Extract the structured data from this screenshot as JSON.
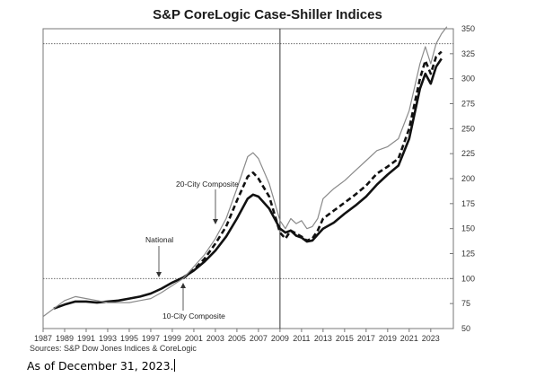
{
  "chart_data": {
    "type": "line",
    "title": "S&P CoreLogic Case-Shiller Indices",
    "xlabel": "",
    "ylabel": "",
    "xlim": [
      1987,
      2025.1
    ],
    "ylim": [
      50,
      350
    ],
    "x_ticks": [
      "1987",
      "1989",
      "1991",
      "1993",
      "1995",
      "1997",
      "1999",
      "2001",
      "2003",
      "2005",
      "2007",
      "2009",
      "2011",
      "2013",
      "2015",
      "2017",
      "2019",
      "2021",
      "2023"
    ],
    "y_ticks": [
      "50",
      "75",
      "100",
      "125",
      "150",
      "175",
      "200",
      "225",
      "250",
      "275",
      "300",
      "325",
      "350"
    ],
    "y_axis_side": "right",
    "reference_lines": [
      {
        "type": "horizontal",
        "value": 100,
        "style": "dotted"
      },
      {
        "type": "horizontal",
        "value": 335,
        "style": "dotted"
      },
      {
        "type": "vertical",
        "value": 2009,
        "style": "solid"
      }
    ],
    "series": [
      {
        "name": "National",
        "style": "thick-solid",
        "x": [
          1988,
          1989,
          1990,
          1991,
          1992,
          1993,
          1994,
          1995,
          1996,
          1997,
          1998,
          1999,
          2000,
          2001,
          2002,
          2003,
          2004,
          2005,
          2006,
          2006.5,
          2007,
          2008,
          2009,
          2009.5,
          2010,
          2010.5,
          2011,
          2011.5,
          2012,
          2012.5,
          2013,
          2014,
          2015,
          2016,
          2017,
          2018,
          2019,
          2020,
          2021,
          2022,
          2022.5,
          2023,
          2023.5,
          2024
        ],
        "y": [
          70,
          74,
          77,
          77,
          76,
          77,
          78,
          80,
          82,
          85,
          90,
          96,
          101,
          108,
          117,
          128,
          142,
          160,
          180,
          184,
          182,
          170,
          150,
          146,
          148,
          143,
          141,
          137,
          138,
          144,
          150,
          156,
          165,
          173,
          182,
          194,
          204,
          213,
          240,
          290,
          305,
          295,
          312,
          320
        ]
      },
      {
        "name": "20-City Composite",
        "style": "thick-dashed",
        "x": [
          2000,
          2001,
          2002,
          2003,
          2004,
          2005,
          2006,
          2006.5,
          2007,
          2008,
          2009,
          2009.5,
          2010,
          2010.5,
          2011,
          2011.5,
          2012,
          2012.5,
          2013,
          2014,
          2015,
          2016,
          2017,
          2018,
          2019,
          2020,
          2021,
          2022,
          2022.5,
          2023,
          2023.5,
          2024
        ],
        "y": [
          100,
          109,
          120,
          135,
          152,
          178,
          202,
          206,
          200,
          182,
          146,
          140,
          148,
          145,
          142,
          138,
          140,
          148,
          160,
          168,
          176,
          184,
          193,
          205,
          212,
          220,
          250,
          300,
          318,
          305,
          322,
          327
        ]
      },
      {
        "name": "10-City Composite",
        "style": "thin-solid",
        "x": [
          1987,
          1988,
          1989,
          1990,
          1991,
          1992,
          1993,
          1994,
          1995,
          1996,
          1997,
          1998,
          1999,
          2000,
          2001,
          2002,
          2003,
          2004,
          2005,
          2006,
          2006.5,
          2007,
          2008,
          2009,
          2009.5,
          2010,
          2010.5,
          2011,
          2011.5,
          2012,
          2012.5,
          2013,
          2014,
          2015,
          2016,
          2017,
          2018,
          2019,
          2020,
          2021,
          2022,
          2022.5,
          2023,
          2023.5,
          2024,
          2024.5
        ],
        "y": [
          62,
          70,
          78,
          82,
          80,
          78,
          76,
          76,
          76,
          78,
          80,
          86,
          93,
          100,
          112,
          124,
          140,
          160,
          190,
          222,
          226,
          220,
          195,
          158,
          150,
          160,
          155,
          158,
          150,
          152,
          160,
          180,
          190,
          198,
          208,
          218,
          228,
          232,
          240,
          268,
          315,
          332,
          315,
          335,
          345,
          352
        ]
      }
    ],
    "annotations": [
      "20-City Composite",
      "National",
      "10-City Composite"
    ],
    "source": "Sources:  S&P Dow Jones Indices & CoreLogic"
  },
  "footer": {
    "as_of": "As of December 31, 2023."
  }
}
